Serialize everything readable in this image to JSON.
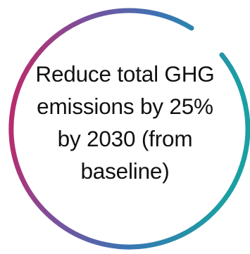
{
  "goal": {
    "lines": [
      "Reduce total GHG",
      "emissions by 25%",
      "by 2030 (from",
      "baseline)"
    ]
  },
  "ring": {
    "colors": {
      "magenta": "#c8235f",
      "purple": "#7d4f9c",
      "blue": "#3a74b3",
      "teal": "#1aa0a3"
    }
  }
}
